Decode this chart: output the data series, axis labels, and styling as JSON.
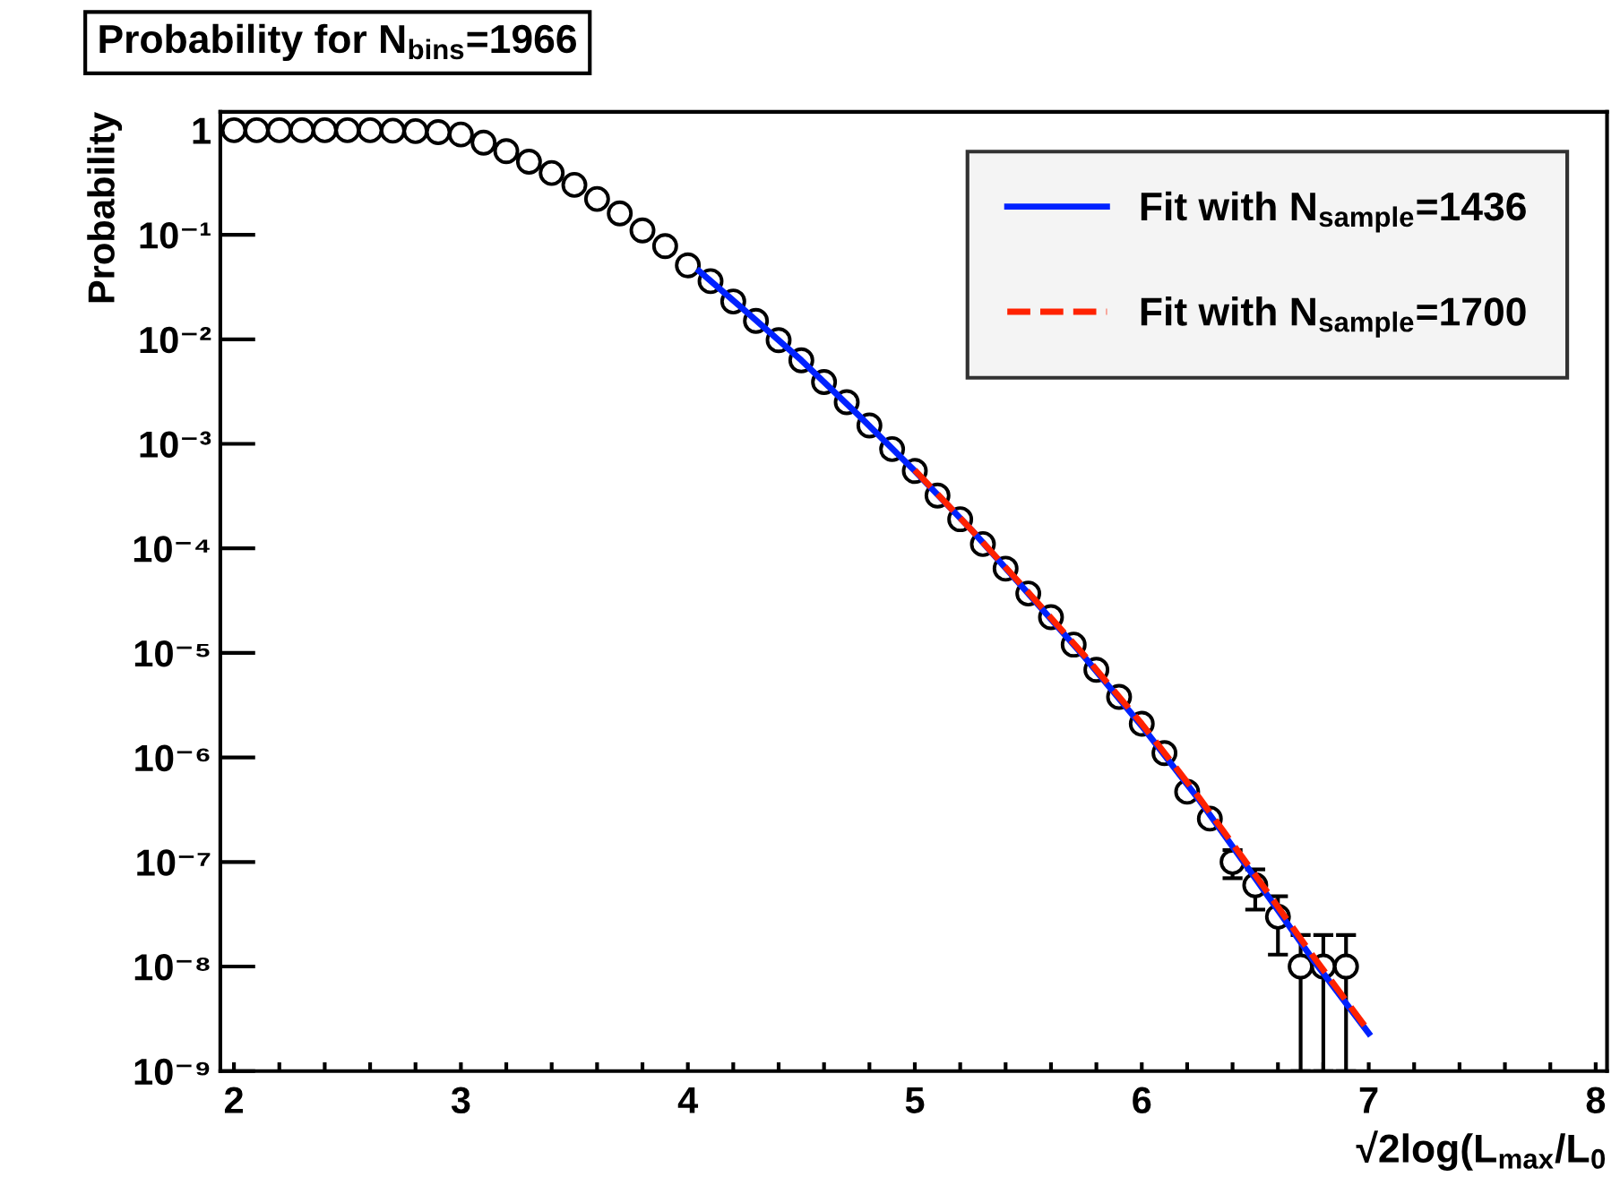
{
  "chart_data": {
    "type": "scatter",
    "title": "Probability for N$_{bins}$=1966",
    "xlabel": "√2log(L$_{max}$/L$_{0}$",
    "ylabel": "Probability",
    "log": "y",
    "grid": false,
    "legend": "top right",
    "marker": "circle",
    "xlim": [
      1.94,
      8.05
    ],
    "ylim": [
      1e-09,
      1.5
    ],
    "xticks": [
      2,
      {
        "value": 2.2,
        "label": null
      },
      {
        "value": 2.4,
        "label": null
      },
      {
        "value": 2.6,
        "label": null
      },
      {
        "value": 2.8,
        "label": null
      },
      3,
      {
        "value": 3.2,
        "label": null
      },
      {
        "value": 3.4,
        "label": null
      },
      {
        "value": 3.6,
        "label": null
      },
      {
        "value": 3.8,
        "label": null
      },
      4,
      {
        "value": 4.2,
        "label": null
      },
      {
        "value": 4.4,
        "label": null
      },
      {
        "value": 4.6,
        "label": null
      },
      {
        "value": 4.8,
        "label": null
      },
      5,
      {
        "value": 5.2,
        "label": null
      },
      {
        "value": 5.4,
        "label": null
      },
      {
        "value": 5.6,
        "label": null
      },
      {
        "value": 5.8,
        "label": null
      },
      6,
      {
        "value": 6.2,
        "label": null
      },
      {
        "value": 6.4,
        "label": null
      },
      {
        "value": 6.6,
        "label": null
      },
      {
        "value": 6.8,
        "label": null
      },
      7,
      {
        "value": 7.2,
        "label": null
      },
      {
        "value": 7.4,
        "label": null
      },
      {
        "value": 7.6,
        "label": null
      },
      {
        "value": 7.8,
        "label": null
      },
      8
    ],
    "yticks": [
      {
        "value": 1e-09,
        "label": "10⁻⁹"
      },
      {
        "value": 1e-08,
        "label": "10⁻⁸"
      },
      {
        "value": 1e-07,
        "label": "10⁻⁷"
      },
      {
        "value": 1e-06,
        "label": "10⁻⁶"
      },
      {
        "value": 1e-05,
        "label": "10⁻⁵"
      },
      {
        "value": 0.0001,
        "label": "10⁻⁴"
      },
      {
        "value": 0.001,
        "label": "10⁻³"
      },
      {
        "value": 0.01,
        "label": "10⁻²"
      },
      {
        "value": 0.1,
        "label": "10⁻¹"
      },
      1
    ],
    "series": [
      {
        "color": "#000000",
        "x": [
          2.0,
          2.1,
          2.2,
          2.3,
          2.4,
          2.5,
          2.6,
          2.7,
          2.8,
          2.9,
          3.0,
          3.1,
          3.2,
          3.3,
          3.4,
          3.5,
          3.6,
          3.7,
          3.8,
          3.9,
          4.0,
          4.1,
          4.2,
          4.3,
          4.4,
          4.5,
          4.6,
          4.7,
          4.8,
          4.9,
          5.0,
          5.1,
          5.2,
          5.3,
          5.4,
          5.5,
          5.6,
          5.7,
          5.8,
          5.9,
          6.0,
          6.1,
          6.2,
          6.3,
          6.4,
          6.5,
          6.6,
          6.7,
          6.8,
          6.9
        ],
        "values": [
          1.0,
          1.0,
          1.0,
          1.0,
          1.0,
          1.0,
          1.0,
          0.99,
          0.98,
          0.96,
          0.91,
          0.76,
          0.63,
          0.5,
          0.39,
          0.3,
          0.22,
          0.16,
          0.11,
          0.078,
          0.051,
          0.036,
          0.023,
          0.015,
          0.0098,
          0.0063,
          0.0039,
          0.0025,
          0.0015,
          0.00089,
          0.00055,
          0.00032,
          0.00019,
          0.00011,
          6.4e-05,
          3.7e-05,
          2.2e-05,
          1.2e-05,
          6.9e-06,
          3.8e-06,
          2.1e-06,
          1.1e-06,
          4.7e-07,
          2.6e-07,
          1e-07,
          6e-08,
          3e-08,
          1e-08,
          1e-08,
          1e-08
        ],
        "errors": [
          null,
          null,
          null,
          null,
          null,
          null,
          null,
          null,
          null,
          null,
          null,
          null,
          null,
          null,
          null,
          null,
          null,
          null,
          null,
          null,
          null,
          null,
          null,
          null,
          null,
          null,
          null,
          null,
          null,
          null,
          null,
          null,
          null,
          null,
          null,
          null,
          null,
          null,
          null,
          null,
          null,
          null,
          null,
          null,
          3e-08,
          2.5e-08,
          1.7e-08,
          [
            1e-09,
            2e-08
          ],
          [
            1e-09,
            2e-08
          ],
          [
            1e-09,
            2e-08
          ]
        ]
      },
      {
        "type": "line",
        "name": "Fit with N$_{sample}$=1436",
        "color": "#0022ff",
        "line_style": "solid",
        "marker": "none",
        "x": [
          4.05,
          4.25,
          4.5,
          4.75,
          5.0,
          5.25,
          5.5,
          5.75,
          6.0,
          6.25,
          6.5,
          6.75,
          7.0
        ],
        "values": [
          0.045,
          0.019,
          0.0063,
          0.0019,
          0.00055,
          0.00015,
          3.7e-05,
          9e-06,
          2e-06,
          4e-07,
          7e-08,
          1.2e-08,
          2.3e-09
        ]
      },
      {
        "type": "line",
        "name": "Fit with N$_{sample}$=1700",
        "color": "#ff2200",
        "line_style": "dashed",
        "marker": "none",
        "x": [
          5.0,
          5.25,
          5.5,
          5.75,
          6.0,
          6.25,
          6.5,
          6.75,
          7.0
        ],
        "values": [
          0.00056,
          0.00015,
          3.8e-05,
          9.3e-06,
          2.1e-06,
          4.2e-07,
          7.5e-08,
          1.3e-08,
          2.4e-09
        ]
      }
    ]
  }
}
